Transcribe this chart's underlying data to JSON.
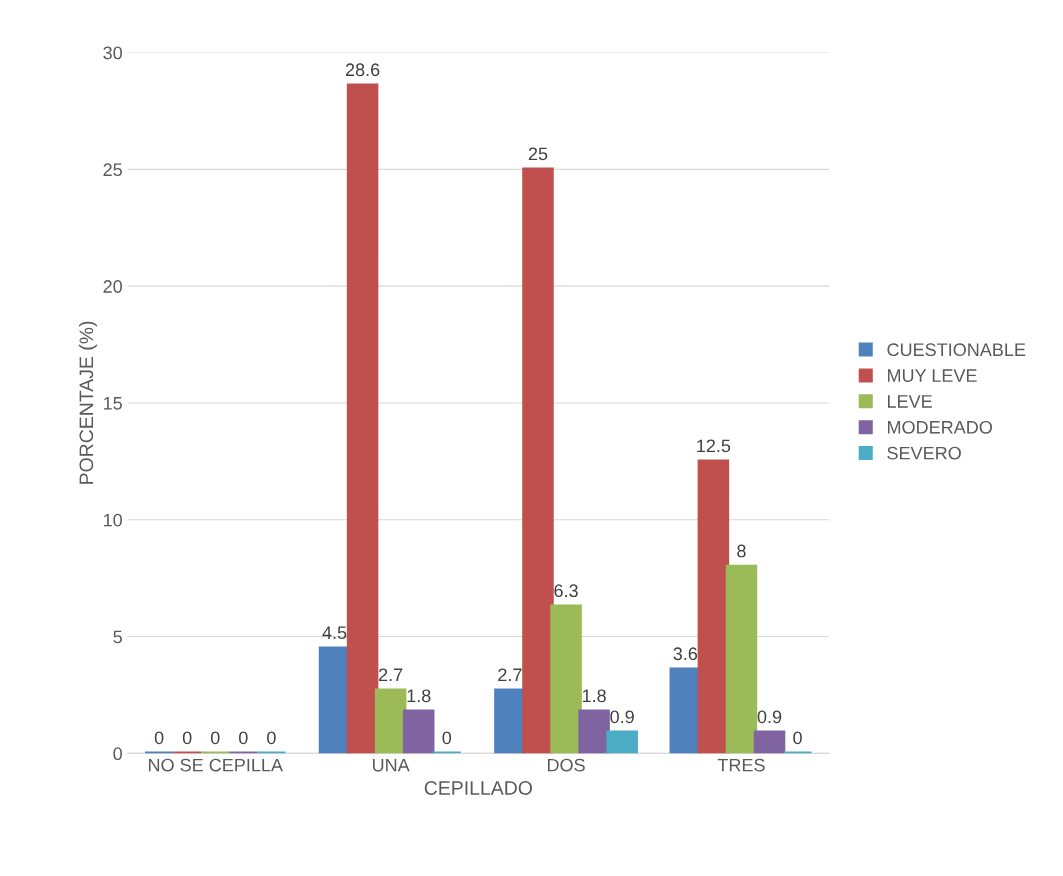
{
  "chart_data": {
    "type": "bar",
    "xlabel": "CEPILLADO",
    "ylabel": "PORCENTAJE (%)",
    "categories": [
      "NO SE CEPILLA",
      "UNA",
      "DOS",
      "TRES"
    ],
    "series": [
      {
        "name": "CUESTIONABLE",
        "color": "#4f81bd",
        "values": [
          0,
          4.5,
          2.7,
          3.6
        ]
      },
      {
        "name": "MUY LEVE",
        "color": "#c0504d",
        "values": [
          0,
          28.6,
          25,
          12.5
        ]
      },
      {
        "name": "LEVE",
        "color": "#9bbb59",
        "values": [
          0,
          2.7,
          6.3,
          8
        ]
      },
      {
        "name": "MODERADO",
        "color": "#8064a2",
        "values": [
          0,
          1.8,
          1.8,
          0.9
        ]
      },
      {
        "name": "SEVERO",
        "color": "#4bacc6",
        "values": [
          0,
          0,
          0.9,
          0
        ]
      }
    ],
    "ylim": [
      0,
      30
    ],
    "yticks": [
      0,
      5,
      10,
      15,
      20,
      25,
      30
    ],
    "grid": "y",
    "legend": "right",
    "data_labels": true
  }
}
